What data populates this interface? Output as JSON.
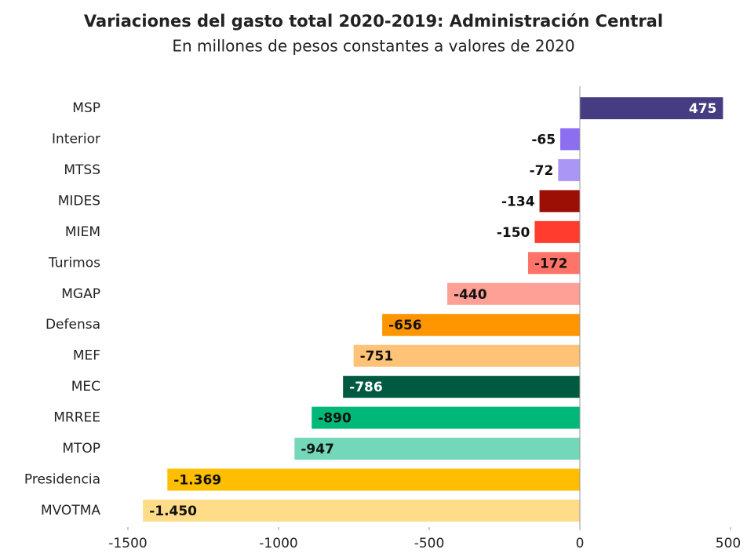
{
  "chart_data": {
    "type": "hbar",
    "title": "Variaciones del gasto total 2020-2019: Administración Central",
    "subtitle": "En millones de pesos constantes a valores de 2020",
    "categories": [
      "MSP",
      "Interior",
      "MTSS",
      "MIDES",
      "MIEM",
      "Turimos",
      "MGAP",
      "Defensa",
      "MEF",
      "MEC",
      "MRREE",
      "MTOP",
      "Presidencia",
      "MVOTMA"
    ],
    "values": [
      475,
      -65,
      -72,
      -134,
      -150,
      -172,
      -440,
      -656,
      -751,
      -786,
      -890,
      -947,
      -1369,
      -1450
    ],
    "value_labels": [
      "475",
      "-65",
      "-72",
      "-134",
      "-150",
      "-172",
      "-440",
      "-656",
      "-751",
      "-786",
      "-890",
      "-947",
      "-1.369",
      "-1.450"
    ],
    "colors": [
      "#463c82",
      "#8c6ef0",
      "#aa96f5",
      "#9b0f05",
      "#ff3c2d",
      "#ff7369",
      "#ffa096",
      "#ff9600",
      "#ffc378",
      "#005a41",
      "#00b978",
      "#73d7b9",
      "#ffbe00",
      "#ffdc87"
    ],
    "xlim": [
      -1500,
      500
    ],
    "xticks": [
      -1500,
      -1000,
      -500,
      0,
      500
    ]
  }
}
